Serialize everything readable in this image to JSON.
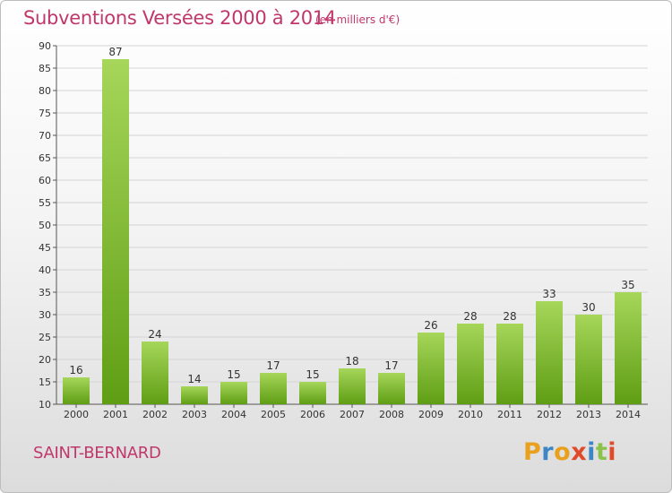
{
  "header": {
    "title": "Subventions Versées 2000 à 2014",
    "unit_note": "(en milliers d'€)"
  },
  "footer": {
    "commune": "SAINT-BERNARD",
    "logo_text": "Proxiti"
  },
  "colors": {
    "title": "#c0386b",
    "bar_top": "#a6d65a",
    "bar_bottom": "#5f9e14",
    "gridline": "#d4d4d4",
    "axis": "#555555",
    "logo_letters": [
      "#e8a01d",
      "#3d86c6",
      "#e8a01d",
      "#e04a2a",
      "#3d86c6",
      "#8bc34a",
      "#e04a2a"
    ]
  },
  "chart_data": {
    "type": "bar",
    "title": "Subventions Versées 2000 à 2014",
    "subtitle": "(en milliers d'€)",
    "xlabel": "",
    "ylabel": "",
    "categories": [
      "2000",
      "2001",
      "2002",
      "2003",
      "2004",
      "2005",
      "2006",
      "2007",
      "2008",
      "2009",
      "2010",
      "2011",
      "2012",
      "2013",
      "2014"
    ],
    "values": [
      16,
      87,
      24,
      14,
      15,
      17,
      15,
      18,
      17,
      26,
      28,
      28,
      33,
      30,
      35
    ],
    "ylim": [
      10,
      90
    ],
    "yticks": [
      10,
      15,
      20,
      25,
      30,
      35,
      40,
      45,
      50,
      55,
      60,
      65,
      70,
      75,
      80,
      85,
      90
    ],
    "grid": "horizontal"
  }
}
